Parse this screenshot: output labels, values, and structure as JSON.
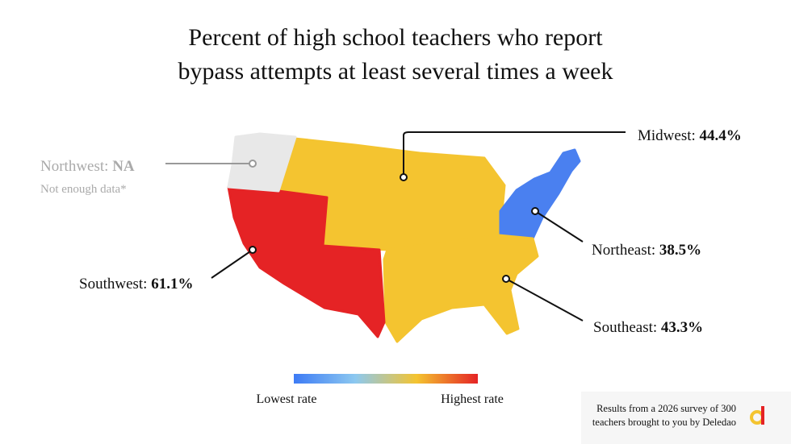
{
  "title": [
    "Percent of high school teachers who report",
    "bypass attempts at least several times a week"
  ],
  "regions": [
    {
      "name": "Midwest:",
      "value": 44.4,
      "value_label": "44.4%",
      "color": "#f4c430"
    },
    {
      "name": "Northeast:",
      "value": 38.5,
      "value_label": "38.5%",
      "color": "#4a80f0"
    },
    {
      "name": "Southeast:",
      "value": 43.3,
      "value_label": "43.3%",
      "color": "#f4c430"
    },
    {
      "name": "Southwest:",
      "value": 61.1,
      "value_label": "61.1%",
      "color": "#e52325"
    },
    {
      "name": "Northwest:",
      "value": null,
      "value_label": "NA",
      "color": "#e8e8e8",
      "note": "Not enough data*"
    }
  ],
  "legend": {
    "low": "Lowest rate",
    "high": "Highest rate",
    "colors": [
      "#3d7bf5",
      "#8cc8f0",
      "#f4c430",
      "#e52325"
    ]
  },
  "footer": [
    "Results from a 2026 survey of 300",
    "teachers brought to you by Deledao"
  ]
}
